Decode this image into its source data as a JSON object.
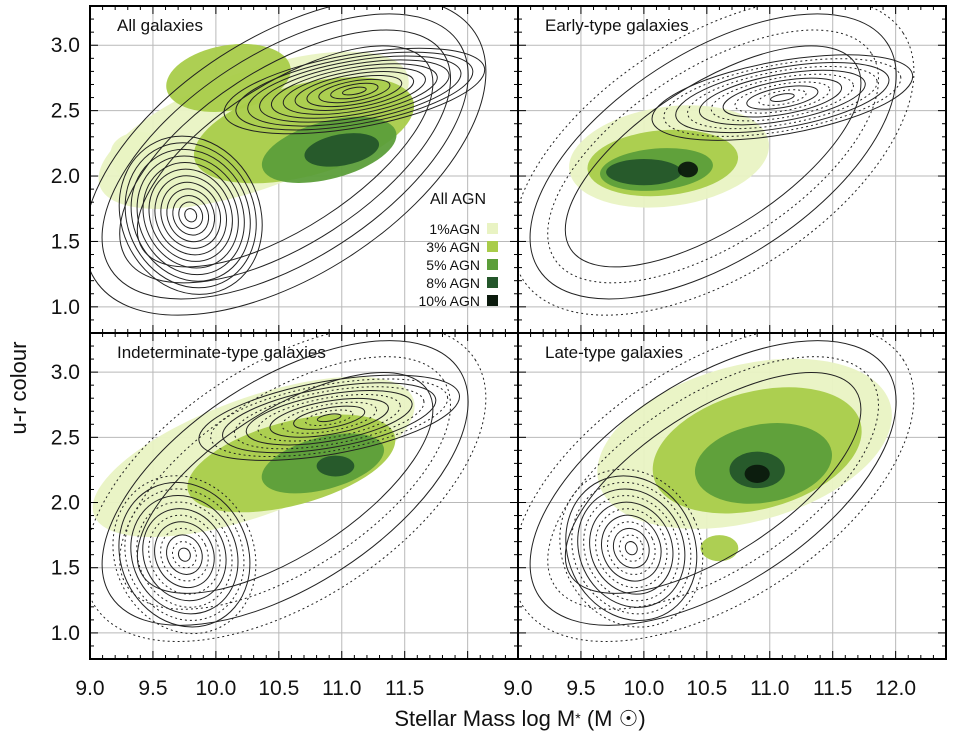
{
  "chart_data": {
    "type": "contour",
    "xlabel": "Stellar Mass log M* (M⊙)",
    "ylabel": "u-r colour",
    "xlim": [
      9.0,
      12.4
    ],
    "ylim": [
      0.8,
      3.3
    ],
    "grid": true,
    "x_ticks": [
      "9.0",
      "9.5",
      "10.0",
      "10.5",
      "11.0",
      "11.5",
      "12.0"
    ],
    "x_ticks_left_col": [
      "9.0",
      "9.5",
      "10.0",
      "10.5",
      "11.0",
      "11.5"
    ],
    "y_ticks": [
      "1.0",
      "1.5",
      "2.0",
      "2.5",
      "3.0"
    ],
    "legend": {
      "title": "All AGN",
      "placement": "inside panel 1, right-center",
      "entries": [
        {
          "label": "1%AGN",
          "color": "#e9f3c3"
        },
        {
          "label": "3% AGN",
          "color": "#a9cc4a"
        },
        {
          "label": "5% AGN",
          "color": "#5c9e3a"
        },
        {
          "label": "8% AGN",
          "color": "#24562a"
        },
        {
          "label": "10% AGN",
          "color": "#0b1a0d"
        }
      ]
    },
    "panels": [
      {
        "title": "All galaxies",
        "peaks": [
          {
            "name": "blue cloud",
            "x": 9.8,
            "y": 1.7
          },
          {
            "name": "red sequence",
            "x": 11.1,
            "y": 2.65
          }
        ],
        "agn_peak": {
          "x": 11.0,
          "y": 2.2
        }
      },
      {
        "title": "Early-type galaxies",
        "peaks": [
          {
            "name": "red sequence",
            "x": 11.1,
            "y": 2.6
          }
        ],
        "agn_peak": {
          "x": 10.3,
          "y": 2.05
        }
      },
      {
        "title": "Indeterminate-type galaxies",
        "peaks": [
          {
            "name": "blue cloud",
            "x": 9.75,
            "y": 1.6
          },
          {
            "name": "red sequence",
            "x": 10.9,
            "y": 2.65
          }
        ],
        "agn_peak": {
          "x": 10.9,
          "y": 2.3
        }
      },
      {
        "title": "Late-type galaxies",
        "peaks": [
          {
            "name": "blue cloud",
            "x": 9.9,
            "y": 1.65
          }
        ],
        "agn_peak": {
          "x": 10.9,
          "y": 2.25
        }
      }
    ]
  },
  "colors": {
    "agn_1": "#e9f3c3",
    "agn_3": "#a9cc4a",
    "agn_5": "#5c9e3a",
    "agn_8": "#24562a",
    "agn_10": "#0b1a0d",
    "contour": "#222222",
    "grid": "#b9b9b9"
  }
}
